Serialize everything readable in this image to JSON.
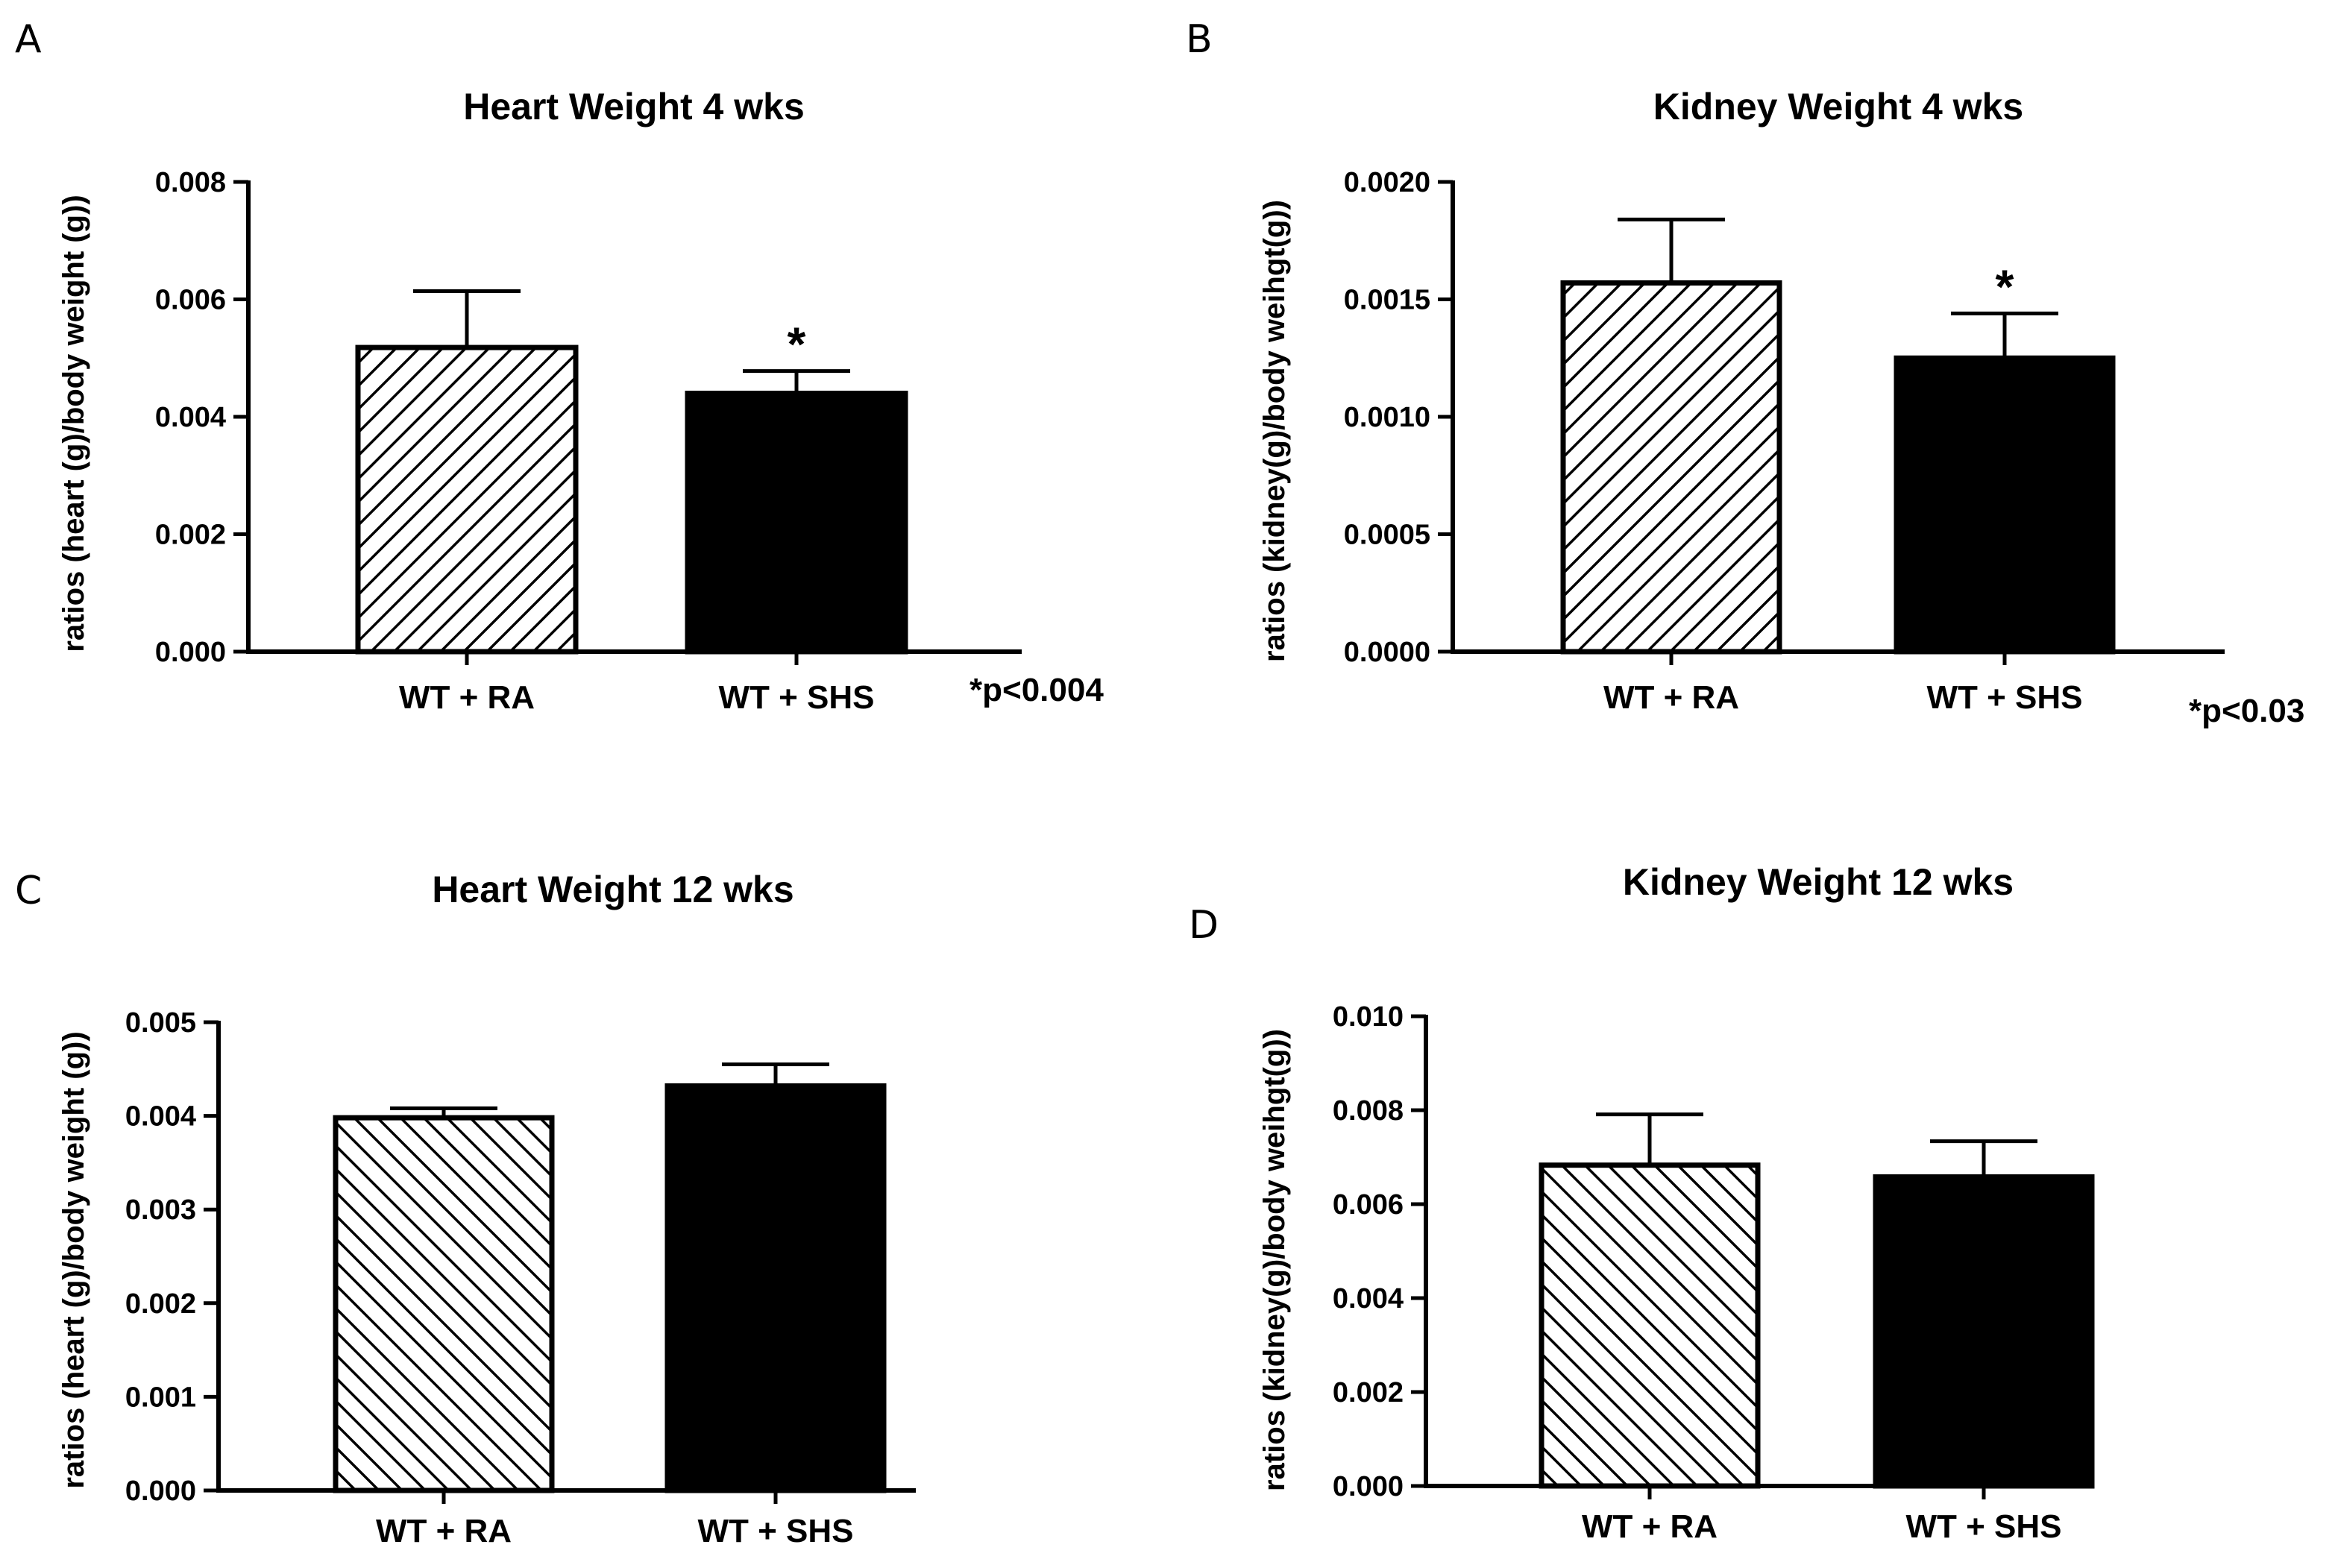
{
  "chart_data": [
    {
      "panel": "A",
      "type": "bar",
      "title": "Heart Weight 4 wks",
      "ylabel": "ratios  (heart (g)/body weight (g))",
      "xlabel": "",
      "categories": [
        "WT + RA",
        "WT + SHS"
      ],
      "values": [
        0.00518,
        0.0044
      ],
      "errors": [
        0.00096,
        0.00038
      ],
      "fills": [
        "hatch",
        "solid"
      ],
      "ylim": [
        0,
        0.008
      ],
      "yticks": [
        "0.000",
        "0.002",
        "0.004",
        "0.006",
        "0.008"
      ],
      "significance": [
        false,
        true
      ],
      "note": "*p<0.004",
      "grid": false,
      "legend": "none"
    },
    {
      "panel": "B",
      "type": "bar",
      "title": "Kidney  Weight 4 wks",
      "ylabel": "ratios (kidney(g)/body weihgt(g))",
      "xlabel": "",
      "categories": [
        "WT + RA",
        "WT + SHS"
      ],
      "values": [
        0.00157,
        0.00125
      ],
      "errors": [
        0.00027,
        0.00019
      ],
      "fills": [
        "hatch",
        "solid"
      ],
      "ylim": [
        0,
        0.002
      ],
      "yticks": [
        "0.0000",
        "0.0005",
        "0.0010",
        "0.0015",
        "0.0020"
      ],
      "significance": [
        false,
        true
      ],
      "note": "*p<0.03",
      "grid": false,
      "legend": "none"
    },
    {
      "panel": "C",
      "type": "bar",
      "title": "Heart Weight 12 wks",
      "ylabel": "ratios  (heart (g)/body weight (g))",
      "xlabel": "",
      "categories": [
        "WT + RA",
        "WT + SHS"
      ],
      "values": [
        0.00398,
        0.00432
      ],
      "errors": [
        0.0001,
        0.00023
      ],
      "fills": [
        "hatch",
        "solid"
      ],
      "ylim": [
        0,
        0.005
      ],
      "yticks": [
        "0.000",
        "0.001",
        "0.002",
        "0.003",
        "0.004",
        "0.005"
      ],
      "significance": [
        false,
        false
      ],
      "note": "",
      "grid": false,
      "legend": "none"
    },
    {
      "panel": "D",
      "type": "bar",
      "title": "Kidney Weight 12 wks",
      "ylabel": "ratios (kidney(g)/body weihgt(g))",
      "xlabel": "",
      "categories": [
        "WT + RA",
        "WT + SHS"
      ],
      "values": [
        0.00683,
        0.00658
      ],
      "errors": [
        0.00108,
        0.00076
      ],
      "fills": [
        "hatch",
        "solid"
      ],
      "ylim": [
        0,
        0.01
      ],
      "yticks": [
        "0.000",
        "0.002",
        "0.004",
        "0.006",
        "0.008",
        "0.010"
      ],
      "significance": [
        false,
        false
      ],
      "note": "",
      "grid": false,
      "legend": "none"
    }
  ],
  "colors": {
    "bar_solid": "#000000",
    "hatch_bg": "#ffffff",
    "axis": "#000000"
  },
  "significance_symbol": "*"
}
